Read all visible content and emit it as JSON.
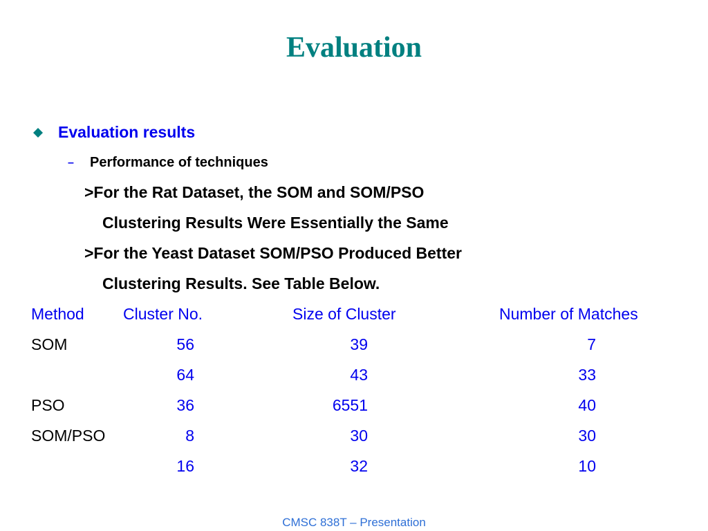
{
  "title": "Evaluation",
  "bullet": "Evaluation results",
  "sub_bullet": "Performance of techniques",
  "lines": [
    ">For the Rat Dataset, the SOM and SOM/PSO",
    "Clustering Results Were Essentially the Same",
    ">For the Yeast Dataset SOM/PSO Produced Better",
    "Clustering Results. See Table Below."
  ],
  "table": {
    "headers": [
      "Method",
      "Cluster No.",
      "Size of Cluster",
      "Number of Matches"
    ],
    "groups": [
      {
        "method": "SOM",
        "rows": [
          [
            56,
            39,
            7
          ],
          [
            64,
            43,
            33
          ]
        ]
      },
      {
        "method": "PSO",
        "rows": [
          [
            36,
            6551,
            40
          ]
        ]
      },
      {
        "method": "SOM/PSO",
        "rows": [
          [
            8,
            30,
            30
          ],
          [
            16,
            32,
            10
          ]
        ]
      }
    ]
  },
  "footer": "CMSC 838T – Presentation"
}
